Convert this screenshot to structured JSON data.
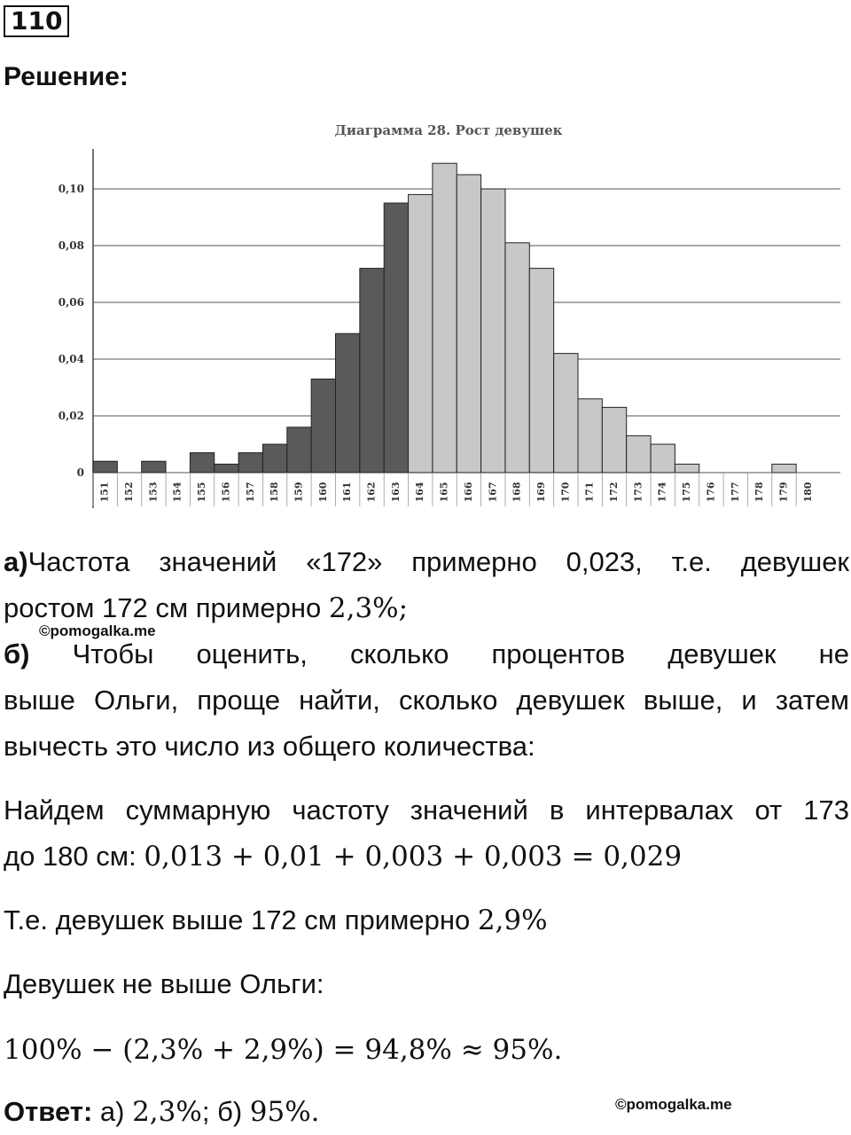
{
  "problem_number": "110",
  "heading": "Решение:",
  "chart_data": {
    "type": "bar",
    "title": "Диаграмма 28. Рост девушек",
    "categories": [
      "151",
      "152",
      "153",
      "154",
      "155",
      "156",
      "157",
      "158",
      "159",
      "160",
      "161",
      "162",
      "163",
      "164",
      "165",
      "166",
      "167",
      "168",
      "169",
      "170",
      "171",
      "172",
      "173",
      "174",
      "175",
      "176",
      "177",
      "178",
      "179",
      "180"
    ],
    "values": [
      0.004,
      0,
      0.004,
      0,
      0.007,
      0.003,
      0.007,
      0.01,
      0.016,
      0.033,
      0.049,
      0.072,
      0.095,
      0.098,
      0.109,
      0.105,
      0.1,
      0.081,
      0.072,
      0.042,
      0.026,
      0.023,
      0.013,
      0.01,
      0.003,
      0,
      0,
      0,
      0.003,
      0
    ],
    "yticks": [
      "0",
      "0,02",
      "0,04",
      "0,06",
      "0,08",
      "0,10"
    ],
    "ylim": [
      0,
      0.12
    ],
    "grid": true,
    "dark_color": "#5a5a5a",
    "light_color": "#c8c8c8",
    "dark_until_index": 12
  },
  "answer_a": {
    "label": "а)",
    "line1_text": "Частота значений «172» примерно 0,023, т.е. девушек",
    "line2_text": "ростом 172 см примерно ",
    "line2_math": "2,3%;"
  },
  "watermark_top": "©pomogalka.me",
  "answer_b": {
    "label": "б)",
    "line1_text": "Чтобы оценить, сколько процентов девушек не",
    "line2_text": "выше Ольги, проще найти, сколько девушек выше, и затем",
    "line3_text": "вычесть это число из общего количества:"
  },
  "sum_par": {
    "line1_text": "Найдем суммарную частоту значений в интервалах от 173",
    "line2_text": "до 180 см: ",
    "line2_math": "0,013 + 0,01 + 0,003 + 0,003 = 0,029"
  },
  "above_par": {
    "text": "Т.е. девушек выше 172 см примерно ",
    "math": "2,9%"
  },
  "olga_par": "Девушек не выше Ольги:",
  "result_math": "100% − (2,3% + 2,9%) = 94,8% ≈ 95%.",
  "final": {
    "label": "Ответ:",
    "text_a": " а) ",
    "math_a": "2,3%",
    "sep": "; б) ",
    "math_b": "95%."
  },
  "watermark_bottom": "©pomogalka.me"
}
